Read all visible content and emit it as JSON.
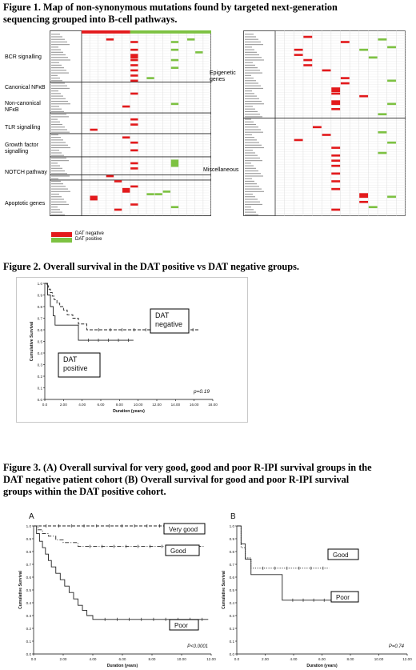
{
  "fig1": {
    "title_lines": [
      "Figure 1. Map of non-synonymous mutations found by targeted next-generation",
      "sequencing grouped into B-cell pathways."
    ],
    "left_groups": [
      {
        "lines": [
          "BCR signalling"
        ]
      },
      {
        "lines": [
          "Canonical NFκB"
        ]
      },
      {
        "lines": [
          "Non-canonical",
          "NFκB"
        ]
      },
      {
        "lines": [
          "TLR signalling"
        ]
      },
      {
        "lines": [
          "Growth factor",
          "signalling"
        ]
      },
      {
        "lines": [
          "NOTCH pathway"
        ]
      },
      {
        "lines": [
          "Apoptotic genes"
        ]
      }
    ],
    "right_groups": [
      {
        "lines": [
          "Epigenetic",
          "genes"
        ]
      },
      {
        "lines": [
          "Miscellaneous"
        ]
      }
    ],
    "legend": [
      {
        "label": "DAT negative",
        "color": "#e31a1c"
      },
      {
        "label": "DAT positive",
        "color": "#7dc242"
      }
    ],
    "colors": {
      "neg": "#e31a1c",
      "pos": "#7dc242"
    }
  },
  "fig2": {
    "title": "Figure 2. Overall survival in the DAT positive vs DAT negative groups.",
    "chart_data": {
      "type": "line",
      "xlabel": "Duration (years)",
      "ylabel": "Cumulative Survival",
      "xlim": [
        0,
        18
      ],
      "ylim": [
        0,
        1.0
      ],
      "xticks": [
        "0.0",
        "2.00",
        "4.00",
        "6.00",
        "8.00",
        "10.00",
        "12.00",
        "14.00",
        "16.00",
        "18.00"
      ],
      "yticks": [
        "0.0",
        "0.1",
        "0.2",
        "0.3",
        "0.4",
        "0.5",
        "0.6",
        "0.7",
        "0.8",
        "0.9",
        "1.0"
      ],
      "annotation": "p=0.19",
      "callouts": [
        {
          "lines": [
            "DAT",
            "negative"
          ]
        },
        {
          "lines": [
            "DAT",
            "positive"
          ]
        }
      ],
      "series": [
        {
          "style": "dashed",
          "x": [
            0,
            0.2,
            0.4,
            0.6,
            0.8,
            1.0,
            1.3,
            1.6,
            2.0,
            2.4,
            3.0,
            3.6,
            4.5,
            16.5
          ],
          "y": [
            1.0,
            0.98,
            0.95,
            0.92,
            0.89,
            0.86,
            0.83,
            0.8,
            0.77,
            0.73,
            0.7,
            0.65,
            0.6,
            0.6
          ]
        },
        {
          "style": "solid",
          "x": [
            0,
            0.3,
            0.6,
            0.9,
            1.1,
            3.6,
            3.6,
            9.5
          ],
          "y": [
            1.0,
            0.9,
            0.8,
            0.72,
            0.64,
            0.64,
            0.51,
            0.51
          ]
        }
      ]
    }
  },
  "fig3": {
    "title_lines": [
      "Figure 3. (A) Overall survival for very good, good and poor R-IPI survival groups in the",
      "DAT negative patient cohort (B) Overall survival for good and poor R-IPI survival",
      "groups within the DAT positive cohort."
    ],
    "panels": [
      {
        "letter": "A",
        "chart_data": {
          "type": "line",
          "xlabel": "Duration (years)",
          "ylabel": "Cumulative Survival",
          "xlim": [
            0,
            12
          ],
          "ylim": [
            0,
            1.0
          ],
          "xticks": [
            "0.0",
            "2.00",
            "4.00",
            "6.00",
            "8.00",
            "10.00",
            "12.00"
          ],
          "yticks": [
            "0.0",
            "0.1",
            "0.2",
            "0.3",
            "0.4",
            "0.5",
            "0.6",
            "0.7",
            "0.8",
            "0.9",
            "1.0"
          ],
          "annotation": "P<0.0001",
          "series": [
            {
              "name": "Very good",
              "style": "dashed",
              "x": [
                0,
                11.5
              ],
              "y": [
                1.0,
                1.0
              ]
            },
            {
              "name": "Good",
              "style": "dotdash",
              "x": [
                0,
                0.3,
                0.6,
                1.0,
                1.5,
                2.0,
                3.0,
                11.5
              ],
              "y": [
                1.0,
                0.97,
                0.94,
                0.92,
                0.89,
                0.87,
                0.84,
                0.84
              ]
            },
            {
              "name": "Poor",
              "style": "solid",
              "x": [
                0,
                0.2,
                0.4,
                0.6,
                0.8,
                1.0,
                1.2,
                1.5,
                1.8,
                2.1,
                2.4,
                2.7,
                3.0,
                3.3,
                3.6,
                4.0,
                11.8
              ],
              "y": [
                1.0,
                0.94,
                0.88,
                0.83,
                0.78,
                0.73,
                0.68,
                0.63,
                0.58,
                0.53,
                0.48,
                0.43,
                0.38,
                0.34,
                0.3,
                0.27,
                0.27
              ]
            }
          ]
        }
      },
      {
        "letter": "B",
        "chart_data": {
          "type": "line",
          "xlabel": "Duration (years)",
          "ylabel": "Cumulative Survival",
          "xlim": [
            0,
            12
          ],
          "ylim": [
            0,
            1.0
          ],
          "xticks": [
            "0.0",
            "2.00",
            "4.00",
            "6.00",
            "8.00",
            "10.00",
            "12.00"
          ],
          "yticks": [
            "0.0",
            "0.1",
            "0.2",
            "0.3",
            "0.4",
            "0.5",
            "0.6",
            "0.7",
            "0.8",
            "0.9",
            "1.0"
          ],
          "annotation": "P=0.74",
          "series": [
            {
              "name": "Good",
              "style": "dotted",
              "x": [
                0,
                0.3,
                0.6,
                1.0,
                6.5
              ],
              "y": [
                1.0,
                0.83,
                0.75,
                0.67,
                0.67
              ]
            },
            {
              "name": "Poor",
              "style": "solid",
              "x": [
                0,
                0.3,
                0.6,
                1.0,
                3.2,
                3.2,
                8.0
              ],
              "y": [
                1.0,
                0.86,
                0.74,
                0.62,
                0.62,
                0.42,
                0.42
              ]
            }
          ]
        }
      }
    ]
  }
}
